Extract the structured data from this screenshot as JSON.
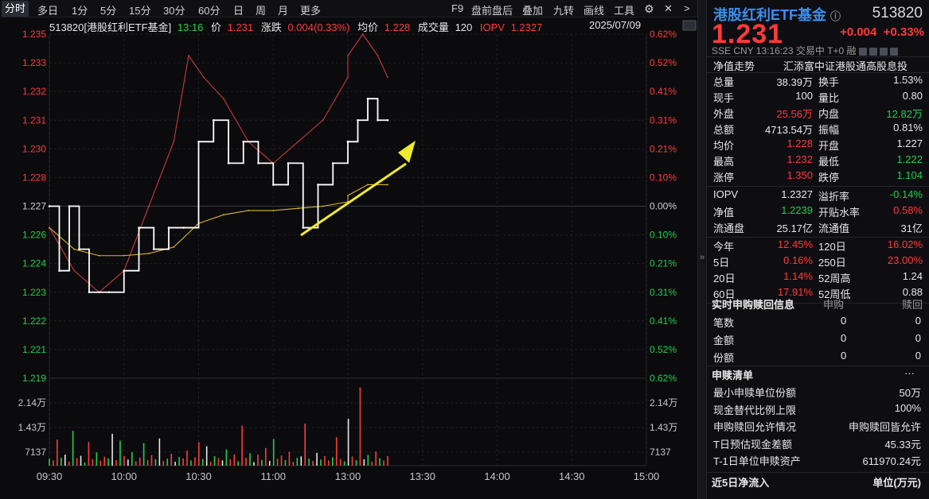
{
  "toolbar": {
    "periods": [
      "分时",
      "多日",
      "1分",
      "5分",
      "15分",
      "30分",
      "60分",
      "日",
      "周",
      "月",
      "更多"
    ],
    "active": "分时",
    "tools": [
      "F9",
      "盘前盘后",
      "叠加",
      "九转",
      "画线",
      "工具"
    ]
  },
  "header": {
    "code_name": "513820[港股红利ETF基金]",
    "time": "13:16",
    "price_label": "价",
    "price": "1.231",
    "chg_label": "涨跌",
    "chg": "0.004(0.33%)",
    "avg_label": "均价",
    "avg": "1.228",
    "vol_label": "成交量",
    "vol": "120",
    "iopv_label": "IOPV",
    "iopv": "1.2327",
    "date": "2025/07/09"
  },
  "axes": {
    "y_left": [
      "1.235",
      "1.233",
      "1.232",
      "1.231",
      "1.230",
      "1.228",
      "1.227",
      "1.226",
      "1.224",
      "1.223",
      "1.222",
      "1.221",
      "1.219"
    ],
    "y_right": [
      "0.62%",
      "0.52%",
      "0.41%",
      "0.31%",
      "0.21%",
      "0.10%",
      "0.00%",
      "0.10%",
      "0.21%",
      "0.31%",
      "0.41%",
      "0.52%",
      "0.62%"
    ],
    "vol_left": [
      "2.14万",
      "1.43万",
      "7137"
    ],
    "vol_right": [
      "2.14万",
      "1.43万",
      "7137"
    ],
    "x": [
      "09:30",
      "10:00",
      "10:30",
      "11:00",
      "13:00",
      "13:30",
      "14:00",
      "14:30",
      "15:00"
    ]
  },
  "chart_data": {
    "type": "line",
    "title": "513820[港股红利ETF基金]",
    "x_range": [
      "09:30",
      "15:00"
    ],
    "ylim": [
      1.219,
      1.235
    ],
    "prev_close": 1.227,
    "series": [
      {
        "name": "价",
        "color": "#ffffff",
        "x": [
          "09:30",
          "09:34",
          "09:38",
          "09:42",
          "09:46",
          "09:50",
          "09:54",
          "10:00",
          "10:06",
          "10:12",
          "10:18",
          "10:24",
          "10:30",
          "10:36",
          "10:42",
          "10:48",
          "10:54",
          "11:00",
          "11:06",
          "11:12",
          "11:18",
          "11:24",
          "11:30",
          "13:00",
          "13:04",
          "13:08",
          "13:12",
          "13:16"
        ],
        "values": [
          1.227,
          1.224,
          1.227,
          1.225,
          1.223,
          1.223,
          1.223,
          1.224,
          1.226,
          1.225,
          1.226,
          1.226,
          1.23,
          1.231,
          1.229,
          1.23,
          1.229,
          1.228,
          1.229,
          1.226,
          1.228,
          1.229,
          1.23,
          1.23,
          1.231,
          1.232,
          1.231,
          1.231
        ]
      },
      {
        "name": "均价",
        "color": "#e0b32a",
        "x": [
          "09:30",
          "09:40",
          "09:50",
          "10:00",
          "10:10",
          "10:20",
          "10:30",
          "10:40",
          "10:50",
          "11:00",
          "11:10",
          "11:20",
          "11:30",
          "13:00",
          "13:08",
          "13:16"
        ],
        "values": [
          1.226,
          1.225,
          1.2247,
          1.2247,
          1.2248,
          1.2251,
          1.2262,
          1.2266,
          1.2268,
          1.2268,
          1.2269,
          1.227,
          1.2272,
          1.2275,
          1.228,
          1.228
        ]
      },
      {
        "name": "IOPV",
        "color": "#c93a3a",
        "x": [
          "09:30",
          "09:40",
          "09:50",
          "10:00",
          "10:10",
          "10:20",
          "10:26",
          "10:32",
          "10:40",
          "10:50",
          "11:00",
          "11:10",
          "11:20",
          "11:30",
          "13:00",
          "13:06",
          "13:12",
          "13:16"
        ],
        "values": [
          1.226,
          1.224,
          1.223,
          1.224,
          1.227,
          1.23,
          1.234,
          1.233,
          1.232,
          1.23,
          1.229,
          1.23,
          1.231,
          1.233,
          1.234,
          1.235,
          1.234,
          1.233
        ]
      }
    ],
    "volume": {
      "x_range": [
        "09:30",
        "13:16"
      ],
      "ylim": [
        0,
        28000
      ],
      "values": [
        2400,
        1800,
        9000,
        2800,
        3800,
        1400,
        12000,
        2600,
        3400,
        1100,
        8200,
        2200,
        4600,
        1700,
        3100,
        2500,
        11000,
        1900,
        8600,
        3300,
        2100,
        4700,
        1500,
        2800,
        7800,
        1900,
        3600,
        2200,
        9400,
        1600,
        2400,
        4100,
        1300,
        3000,
        2500,
        5200,
        1800,
        2900,
        8100,
        2300,
        6700,
        1400,
        3300,
        2600,
        1800,
        5600,
        2200,
        3900,
        1500,
        13800,
        2700,
        4300,
        1200,
        3800,
        2000,
        6100,
        1600,
        9200,
        2400,
        3500,
        1900,
        4800,
        1300,
        2700,
        3200,
        14500,
        2500,
        1600,
        4400,
        2100,
        3300,
        1800,
        2900,
        9800,
        2300,
        1500,
        16200,
        3100,
        1900,
        27000,
        2200,
        3700,
        1400,
        4900,
        2600,
        1800,
        3300
      ]
    }
  },
  "panel": {
    "name": "港股红利ETF基金",
    "code": "513820",
    "price": "1.231",
    "chg": "+0.004",
    "chg_pct": "+0.33%",
    "meta": "SSE  CNY  13:16:23  交易中 T+0 融",
    "nav_trend": "净值走势",
    "fund_company": "汇添富中证港股通高股息投",
    "stats": [
      {
        "l1": "总量",
        "v1": "38.39万",
        "c1": "white",
        "l2": "换手",
        "v2": "1.53%",
        "c2": "white"
      },
      {
        "l1": "现手",
        "v1": "100",
        "c1": "white",
        "l2": "量比",
        "v2": "0.80",
        "c2": "white"
      },
      {
        "l1": "外盘",
        "v1": "25.56万",
        "c1": "red",
        "l2": "内盘",
        "v2": "12.82万",
        "c2": "green"
      },
      {
        "l1": "总额",
        "v1": "4713.54万",
        "c1": "white",
        "l2": "振幅",
        "v2": "0.81%",
        "c2": "white"
      },
      {
        "l1": "均价",
        "v1": "1.228",
        "c1": "red",
        "l2": "开盘",
        "v2": "1.227",
        "c2": "white"
      },
      {
        "l1": "最高",
        "v1": "1.232",
        "c1": "red",
        "l2": "最低",
        "v2": "1.222",
        "c2": "green"
      },
      {
        "l1": "涨停",
        "v1": "1.350",
        "c1": "red",
        "l2": "跌停",
        "v2": "1.104",
        "c2": "green"
      }
    ],
    "stats2": [
      {
        "l1": "IOPV",
        "v1": "1.2327",
        "c1": "white",
        "l2": "溢折率",
        "v2": "-0.14%",
        "c2": "green"
      },
      {
        "l1": "净值",
        "v1": "1.2239",
        "c1": "green",
        "l2": "开贴水率",
        "v2": "0.58%",
        "c2": "red"
      },
      {
        "l1": "流通盘",
        "v1": "25.17亿",
        "c1": "white",
        "l2": "流通值",
        "v2": "31亿",
        "c2": "white"
      }
    ],
    "stats3": [
      {
        "l1": "今年",
        "v1": "12.45%",
        "c1": "red",
        "l2": "120日",
        "v2": "16.02%",
        "c2": "red"
      },
      {
        "l1": "5日",
        "v1": "0.16%",
        "c1": "red",
        "l2": "250日",
        "v2": "23.00%",
        "c2": "red"
      },
      {
        "l1": "20日",
        "v1": "1.14%",
        "c1": "red",
        "l2": "52周高",
        "v2": "1.24",
        "c2": "white"
      },
      {
        "l1": "60日",
        "v1": "17.91%",
        "c1": "red",
        "l2": "52周低",
        "v2": "0.88",
        "c2": "white"
      }
    ],
    "subscription": {
      "title": "实时申购赎回信息",
      "col1": "申购",
      "col2": "赎回",
      "rows": [
        {
          "label": "笔数",
          "v1": "0",
          "v2": "0"
        },
        {
          "label": "金额",
          "v1": "0",
          "v2": "0"
        },
        {
          "label": "份额",
          "v1": "0",
          "v2": "0"
        }
      ]
    },
    "list": {
      "title": "申赎清单",
      "more": "···",
      "rows": [
        {
          "label": "最小申赎单位份额",
          "value": "50万"
        },
        {
          "label": "现金替代比例上限",
          "value": "100%"
        },
        {
          "label": "申购赎回允许情况",
          "value": "申购赎回皆允许"
        },
        {
          "label": "T日预估现金差额",
          "value": "45.33元"
        },
        {
          "label": "T-1日单位申赎资产",
          "value": "611970.24元"
        }
      ]
    },
    "footer": {
      "left": "近5日净流入",
      "right": "单位(万元)"
    }
  }
}
